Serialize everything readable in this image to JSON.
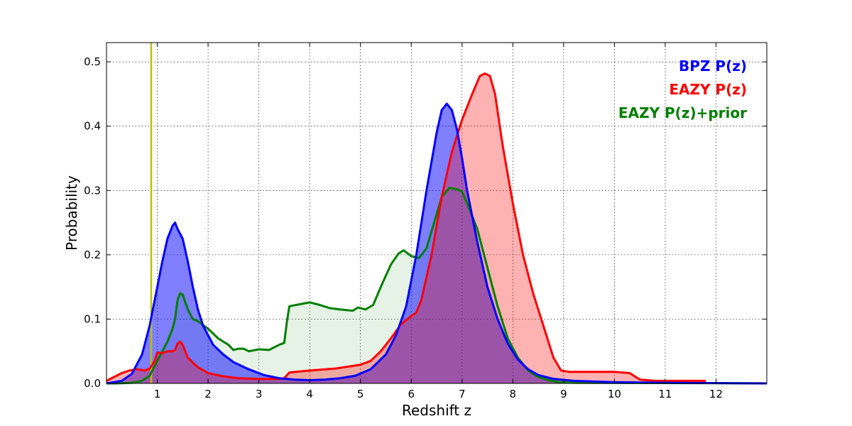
{
  "chart_data": {
    "type": "area",
    "xlabel": "Redshift z",
    "ylabel": "Probability",
    "xlim": [
      0,
      13
    ],
    "ylim": [
      0,
      0.53
    ],
    "xticks": [
      1,
      2,
      3,
      4,
      5,
      6,
      7,
      8,
      9,
      10,
      11,
      12
    ],
    "xtick_labels": [
      "1",
      "2",
      "3",
      "4",
      "5",
      "6",
      "7",
      "8",
      "9",
      "10",
      "11",
      "12"
    ],
    "yticks": [
      0.0,
      0.1,
      0.2,
      0.3,
      0.4,
      0.5
    ],
    "ytick_labels": [
      "0.0",
      "0.1",
      "0.2",
      "0.3",
      "0.4",
      "0.5"
    ],
    "grid": true,
    "legend_position": "top-right",
    "vline": {
      "x": 0.88,
      "color": "#bfbf00"
    },
    "series": [
      {
        "name": "BPZ P(z)",
        "color": "#0000ff",
        "fill": "#0000ff",
        "points": [
          [
            0,
            0
          ],
          [
            0.3,
            0.004
          ],
          [
            0.5,
            0.015
          ],
          [
            0.7,
            0.045
          ],
          [
            0.85,
            0.09
          ],
          [
            1.0,
            0.15
          ],
          [
            1.1,
            0.19
          ],
          [
            1.2,
            0.225
          ],
          [
            1.3,
            0.245
          ],
          [
            1.35,
            0.25
          ],
          [
            1.4,
            0.24
          ],
          [
            1.5,
            0.225
          ],
          [
            1.6,
            0.19
          ],
          [
            1.7,
            0.15
          ],
          [
            1.8,
            0.115
          ],
          [
            1.9,
            0.09
          ],
          [
            2.0,
            0.075
          ],
          [
            2.1,
            0.06
          ],
          [
            2.3,
            0.045
          ],
          [
            2.5,
            0.033
          ],
          [
            2.8,
            0.022
          ],
          [
            3.1,
            0.013
          ],
          [
            3.4,
            0.008
          ],
          [
            3.7,
            0.006
          ],
          [
            4.0,
            0.005
          ],
          [
            4.3,
            0.006
          ],
          [
            4.6,
            0.008
          ],
          [
            4.9,
            0.012
          ],
          [
            5.2,
            0.022
          ],
          [
            5.5,
            0.045
          ],
          [
            5.7,
            0.075
          ],
          [
            5.9,
            0.12
          ],
          [
            6.1,
            0.2
          ],
          [
            6.3,
            0.3
          ],
          [
            6.5,
            0.39
          ],
          [
            6.6,
            0.425
          ],
          [
            6.7,
            0.435
          ],
          [
            6.8,
            0.425
          ],
          [
            6.9,
            0.395
          ],
          [
            7.0,
            0.35
          ],
          [
            7.1,
            0.3
          ],
          [
            7.3,
            0.22
          ],
          [
            7.5,
            0.15
          ],
          [
            7.7,
            0.1
          ],
          [
            7.9,
            0.062
          ],
          [
            8.1,
            0.037
          ],
          [
            8.3,
            0.022
          ],
          [
            8.5,
            0.013
          ],
          [
            8.8,
            0.007
          ],
          [
            9.2,
            0.004
          ],
          [
            10,
            0.002
          ],
          [
            11,
            0.001
          ],
          [
            13,
            0
          ]
        ]
      },
      {
        "name": "EAZY P(z)",
        "color": "#ff0000",
        "fill": "#ff0000",
        "points": [
          [
            0,
            0.004
          ],
          [
            0.1,
            0.008
          ],
          [
            0.2,
            0.012
          ],
          [
            0.3,
            0.016
          ],
          [
            0.45,
            0.02
          ],
          [
            0.6,
            0.022
          ],
          [
            0.75,
            0.02
          ],
          [
            0.85,
            0.023
          ],
          [
            0.95,
            0.035
          ],
          [
            1.0,
            0.048
          ],
          [
            1.1,
            0.047
          ],
          [
            1.2,
            0.05
          ],
          [
            1.3,
            0.05
          ],
          [
            1.35,
            0.052
          ],
          [
            1.4,
            0.062
          ],
          [
            1.45,
            0.065
          ],
          [
            1.5,
            0.06
          ],
          [
            1.6,
            0.04
          ],
          [
            1.8,
            0.025
          ],
          [
            2.0,
            0.016
          ],
          [
            2.3,
            0.011
          ],
          [
            2.6,
            0.008
          ],
          [
            3.0,
            0.007
          ],
          [
            3.4,
            0.007
          ],
          [
            3.5,
            0.008
          ],
          [
            3.6,
            0.017
          ],
          [
            4.0,
            0.02
          ],
          [
            4.5,
            0.023
          ],
          [
            5.0,
            0.029
          ],
          [
            5.2,
            0.035
          ],
          [
            5.4,
            0.05
          ],
          [
            5.6,
            0.07
          ],
          [
            5.8,
            0.092
          ],
          [
            6.0,
            0.105
          ],
          [
            6.1,
            0.11
          ],
          [
            6.2,
            0.13
          ],
          [
            6.4,
            0.2
          ],
          [
            6.6,
            0.29
          ],
          [
            6.8,
            0.36
          ],
          [
            7.0,
            0.41
          ],
          [
            7.2,
            0.45
          ],
          [
            7.35,
            0.478
          ],
          [
            7.45,
            0.482
          ],
          [
            7.55,
            0.478
          ],
          [
            7.65,
            0.45
          ],
          [
            7.8,
            0.37
          ],
          [
            8.0,
            0.28
          ],
          [
            8.2,
            0.2
          ],
          [
            8.4,
            0.14
          ],
          [
            8.6,
            0.09
          ],
          [
            8.8,
            0.04
          ],
          [
            8.95,
            0.02
          ],
          [
            9.1,
            0.018
          ],
          [
            9.5,
            0.018
          ],
          [
            10.0,
            0.018
          ],
          [
            10.3,
            0.016
          ],
          [
            10.5,
            0.006
          ],
          [
            10.8,
            0.004
          ],
          [
            11.8,
            0.004
          ]
        ]
      },
      {
        "name": "EAZY P(z)+prior",
        "color": "#007f00",
        "fill": "#007f00",
        "points": [
          [
            0,
            0
          ],
          [
            0.2,
            0
          ],
          [
            0.5,
            0.001
          ],
          [
            0.7,
            0.004
          ],
          [
            0.85,
            0.012
          ],
          [
            1.0,
            0.035
          ],
          [
            1.1,
            0.05
          ],
          [
            1.2,
            0.065
          ],
          [
            1.3,
            0.085
          ],
          [
            1.35,
            0.1
          ],
          [
            1.4,
            0.13
          ],
          [
            1.45,
            0.14
          ],
          [
            1.5,
            0.138
          ],
          [
            1.6,
            0.115
          ],
          [
            1.7,
            0.1
          ],
          [
            1.8,
            0.097
          ],
          [
            2.0,
            0.085
          ],
          [
            2.2,
            0.07
          ],
          [
            2.4,
            0.06
          ],
          [
            2.5,
            0.052
          ],
          [
            2.6,
            0.054
          ],
          [
            2.7,
            0.054
          ],
          [
            2.8,
            0.05
          ],
          [
            3.0,
            0.053
          ],
          [
            3.2,
            0.052
          ],
          [
            3.4,
            0.06
          ],
          [
            3.5,
            0.063
          ],
          [
            3.55,
            0.095
          ],
          [
            3.6,
            0.12
          ],
          [
            3.8,
            0.123
          ],
          [
            4.0,
            0.126
          ],
          [
            4.2,
            0.122
          ],
          [
            4.4,
            0.117
          ],
          [
            4.6,
            0.115
          ],
          [
            4.85,
            0.113
          ],
          [
            4.95,
            0.118
          ],
          [
            5.1,
            0.115
          ],
          [
            5.25,
            0.122
          ],
          [
            5.4,
            0.15
          ],
          [
            5.6,
            0.185
          ],
          [
            5.75,
            0.202
          ],
          [
            5.85,
            0.207
          ],
          [
            6.0,
            0.198
          ],
          [
            6.15,
            0.195
          ],
          [
            6.3,
            0.21
          ],
          [
            6.45,
            0.25
          ],
          [
            6.6,
            0.29
          ],
          [
            6.75,
            0.304
          ],
          [
            6.9,
            0.302
          ],
          [
            7.0,
            0.298
          ],
          [
            7.1,
            0.28
          ],
          [
            7.3,
            0.24
          ],
          [
            7.5,
            0.18
          ],
          [
            7.7,
            0.12
          ],
          [
            7.9,
            0.07
          ],
          [
            8.1,
            0.04
          ],
          [
            8.3,
            0.02
          ],
          [
            8.5,
            0.01
          ],
          [
            8.7,
            0.005
          ],
          [
            8.9,
            0.002
          ],
          [
            9.2,
            0.001
          ],
          [
            13,
            0
          ]
        ]
      }
    ],
    "legend": [
      {
        "label": "BPZ P(z)",
        "color": "#0000ff"
      },
      {
        "label": "EAZY P(z)",
        "color": "#ff0000"
      },
      {
        "label": "EAZY P(z)+prior",
        "color": "#007f00"
      }
    ]
  }
}
